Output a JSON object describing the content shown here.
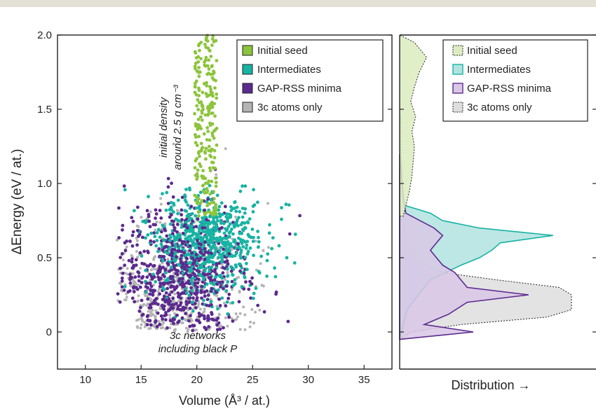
{
  "colors": {
    "band": "#e3e1d6",
    "seed": "#8cc43c",
    "intermediates": "#17b3a3",
    "minima": "#5b2a8e",
    "threec": "#b4b4b4",
    "seed_fill": "#dcecc0",
    "intermediates_fill": "#b2e3e0",
    "minima_fill": "#d9c7e6",
    "threec_fill": "#dedede"
  },
  "chart_data": [
    {
      "type": "scatter",
      "xlabel": "Volume (Å³ / at.)",
      "ylabel": "ΔEnergy (eV / at.)",
      "xlim": [
        7.5,
        37.5
      ],
      "ylim": [
        -0.25,
        2.0
      ],
      "x_ticks": [
        "10",
        "15",
        "20",
        "25",
        "30",
        "35"
      ],
      "y_ticks": [
        "0",
        "0.5",
        "1.0",
        "1.5",
        "2.0"
      ],
      "legend_position": "top-right",
      "annotations": [
        {
          "text": "initial density",
          "rotated": true
        },
        {
          "text": "around 2.5 g cm⁻³",
          "rotated": true
        },
        {
          "text": "3c networks"
        },
        {
          "text": "including black P"
        }
      ],
      "series": [
        {
          "name": "Initial seed",
          "x_range": [
            19.8,
            21.8
          ],
          "y_range": [
            0.78,
            2.0
          ],
          "count": 230
        },
        {
          "name": "Intermediates",
          "center": [
            21.0,
            0.6
          ],
          "spread": [
            2.2,
            0.17
          ],
          "x_range": [
            13.0,
            29.0
          ],
          "y_range": [
            0.0,
            1.0
          ],
          "count": 650
        },
        {
          "name": "GAP-RSS minima",
          "center": [
            18.5,
            0.38
          ],
          "spread": [
            2.6,
            0.22
          ],
          "x_range": [
            12.8,
            37.5
          ],
          "y_range": [
            0.0,
            1.1
          ],
          "count": 680
        },
        {
          "name": "3c atoms only",
          "center": [
            18.5,
            0.2
          ],
          "spread": [
            2.8,
            0.28
          ],
          "x_range": [
            12.8,
            37.0
          ],
          "y_range": [
            0.0,
            1.5
          ],
          "count": 520
        }
      ]
    },
    {
      "type": "area",
      "xlabel": "Distribution →",
      "ylim": [
        -0.25,
        2.0
      ],
      "legend_position": "top-right",
      "series": [
        {
          "name": "Initial seed",
          "y": [
            0.78,
            0.85,
            0.95,
            1.05,
            1.15,
            1.25,
            1.35,
            1.45,
            1.55,
            1.65,
            1.75,
            1.85,
            1.95,
            2.0
          ],
          "density": [
            0.03,
            0.05,
            0.08,
            0.1,
            0.11,
            0.12,
            0.1,
            0.13,
            0.09,
            0.12,
            0.16,
            0.22,
            0.12,
            0.0
          ]
        },
        {
          "name": "Intermediates",
          "y": [
            -0.05,
            0.05,
            0.15,
            0.25,
            0.35,
            0.45,
            0.5,
            0.55,
            0.6,
            0.65,
            0.7,
            0.75,
            0.8,
            0.85,
            0.9,
            1.0,
            1.1
          ],
          "density": [
            0.0,
            0.03,
            0.06,
            0.15,
            0.25,
            0.5,
            0.65,
            0.75,
            0.82,
            1.25,
            0.65,
            0.35,
            0.25,
            0.05,
            0.02,
            0.01,
            0.0
          ]
        },
        {
          "name": "GAP-RSS minima",
          "y": [
            -0.05,
            0.0,
            0.05,
            0.12,
            0.2,
            0.25,
            0.3,
            0.35,
            0.4,
            0.45,
            0.5,
            0.55,
            0.6,
            0.65,
            0.7,
            0.8,
            0.9,
            1.0,
            1.1,
            1.2
          ],
          "density": [
            0.0,
            0.6,
            0.2,
            0.4,
            0.55,
            1.05,
            0.55,
            0.5,
            0.45,
            0.35,
            0.3,
            0.25,
            0.3,
            0.35,
            0.28,
            0.05,
            0.03,
            0.02,
            0.01,
            0.0
          ]
        },
        {
          "name": "3c atoms only",
          "y": [
            -0.05,
            0.0,
            0.05,
            0.1,
            0.15,
            0.2,
            0.25,
            0.3,
            0.35,
            0.4,
            0.45,
            0.5,
            0.55,
            0.6,
            0.65,
            0.7,
            0.8,
            0.9,
            1.0,
            1.1,
            1.2,
            1.3,
            1.4,
            1.5
          ],
          "density": [
            0.0,
            0.1,
            0.5,
            1.2,
            1.4,
            1.4,
            1.4,
            1.3,
            0.8,
            0.35,
            0.2,
            0.1,
            0.06,
            0.05,
            0.05,
            0.04,
            0.03,
            0.03,
            0.02,
            0.02,
            0.01,
            0.01,
            0.01,
            0.0
          ]
        }
      ]
    }
  ]
}
